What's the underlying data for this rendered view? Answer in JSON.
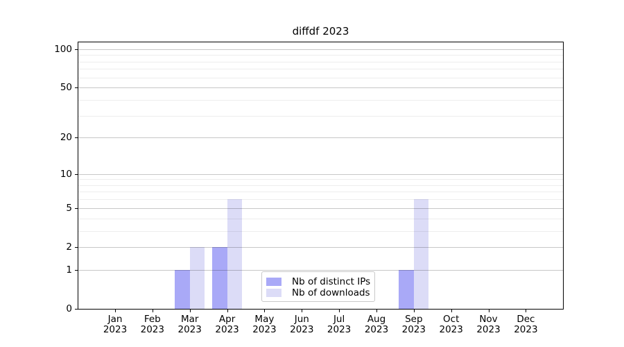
{
  "title": "diffdf 2023",
  "legend": {
    "items": [
      {
        "label": "Nb of distinct IPs",
        "color": "#a9a9f7"
      },
      {
        "label": "Nb of downloads",
        "color": "#dcdcf7"
      }
    ]
  },
  "colors": {
    "background": "#ffffff",
    "axis": "#000000",
    "grid_major": "rgba(0,0,0,0.22)",
    "grid_minor": "rgba(0,0,0,0.07)",
    "bar_distinct_ips": "#a9a9f7",
    "bar_downloads": "#dcdcf7"
  },
  "chart_data": {
    "type": "bar",
    "title": "diffdf 2023",
    "categories": [
      "Jan 2023",
      "Feb 2023",
      "Mar 2023",
      "Apr 2023",
      "May 2023",
      "Jun 2023",
      "Jul 2023",
      "Aug 2023",
      "Sep 2023",
      "Oct 2023",
      "Nov 2023",
      "Dec 2023"
    ],
    "category_line1": [
      "Jan",
      "Feb",
      "Mar",
      "Apr",
      "May",
      "Jun",
      "Jul",
      "Aug",
      "Sep",
      "Oct",
      "Nov",
      "Dec"
    ],
    "category_line2": "2023",
    "series": [
      {
        "name": "Nb of distinct IPs",
        "color": "#a9a9f7",
        "values": [
          0,
          0,
          1,
          2,
          0,
          0,
          0,
          0,
          1,
          0,
          0,
          0
        ]
      },
      {
        "name": "Nb of downloads",
        "color": "#dcdcf7",
        "values": [
          0,
          0,
          2,
          6,
          0,
          0,
          0,
          0,
          6,
          0,
          0,
          0
        ]
      }
    ],
    "ylabel": "",
    "xlabel": "",
    "yscale": "log1p",
    "ylim": [
      0,
      113
    ],
    "yticks": [
      0,
      1,
      2,
      5,
      10,
      20,
      50,
      100
    ],
    "yticks_minor": [
      3,
      4,
      6,
      7,
      8,
      9,
      30,
      40,
      60,
      70,
      80,
      90
    ],
    "grid": true,
    "grid_above_bars": true,
    "legend_position": "lower center"
  }
}
